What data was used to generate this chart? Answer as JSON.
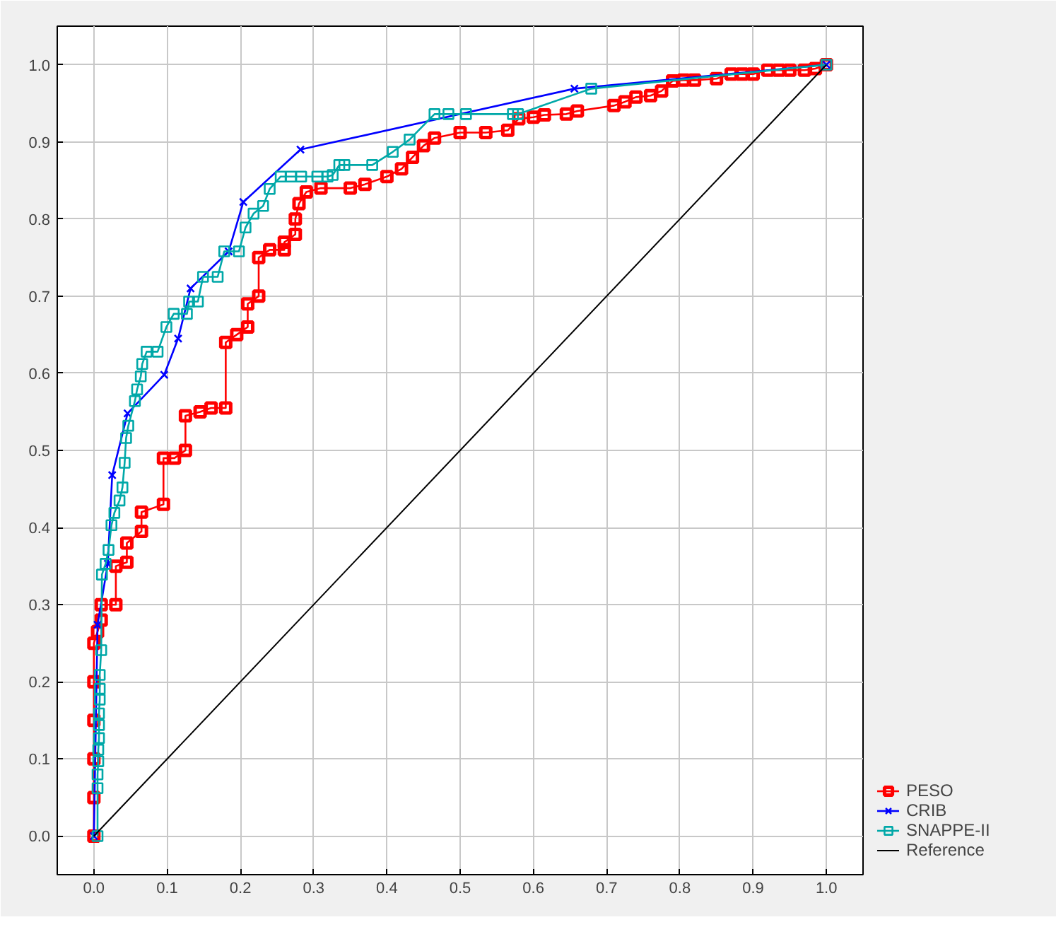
{
  "chart_data": {
    "type": "line",
    "xlim": [
      -0.05,
      1.05
    ],
    "ylim": [
      -0.05,
      1.05
    ],
    "xticks": [
      {
        "value": 0,
        "label": "0.0"
      },
      0.1,
      0.2,
      0.3,
      0.4,
      0.5,
      0.6,
      0.7,
      0.8,
      0.9,
      {
        "value": 1,
        "label": "1.0"
      }
    ],
    "yticks": [
      {
        "value": 0,
        "label": "0.0"
      },
      0.1,
      0.2,
      0.3,
      0.4,
      0.5,
      0.6,
      0.7,
      0.8,
      0.9,
      {
        "value": 1,
        "label": "1.0"
      }
    ],
    "grid": true,
    "legend": "right",
    "series": [
      {
        "name": "PESO",
        "color": "#ff0000",
        "marker": "square",
        "x": [
          0,
          0,
          0,
          0,
          0,
          0,
          0.005,
          0.01,
          0.01,
          0.03,
          0.03,
          0.045,
          0.045,
          0.065,
          0.065,
          0.095,
          0.095,
          0.11,
          0.125,
          0.125,
          0.145,
          0.16,
          0.18,
          0.18,
          0.195,
          0.21,
          0.21,
          0.225,
          0.225,
          0.24,
          0.26,
          0.26,
          0.275,
          0.275,
          0.28,
          0.29,
          0.31,
          0.35,
          0.37,
          0.4,
          0.42,
          0.435,
          0.45,
          0.465,
          0.5,
          0.535,
          0.565,
          0.58,
          0.6,
          0.615,
          0.645,
          0.66,
          0.71,
          0.725,
          0.74,
          0.76,
          0.775,
          0.79,
          0.805,
          0.82,
          0.85,
          0.87,
          0.885,
          0.9,
          0.92,
          0.935,
          0.95,
          0.97,
          0.985,
          1
        ],
        "values": [
          0,
          0.05,
          0.1,
          0.15,
          0.2,
          0.25,
          0.265,
          0.28,
          0.3,
          0.3,
          0.35,
          0.355,
          0.38,
          0.395,
          0.42,
          0.43,
          0.49,
          0.49,
          0.5,
          0.545,
          0.55,
          0.555,
          0.555,
          0.64,
          0.65,
          0.66,
          0.69,
          0.7,
          0.75,
          0.76,
          0.76,
          0.77,
          0.78,
          0.8,
          0.82,
          0.835,
          0.84,
          0.84,
          0.845,
          0.855,
          0.865,
          0.88,
          0.895,
          0.905,
          0.912,
          0.912,
          0.915,
          0.93,
          0.932,
          0.935,
          0.936,
          0.94,
          0.947,
          0.952,
          0.958,
          0.96,
          0.966,
          0.979,
          0.98,
          0.98,
          0.982,
          0.988,
          0.988,
          0.988,
          0.993,
          0.993,
          0.993,
          0.993,
          0.995,
          1
        ]
      },
      {
        "name": "CRIB",
        "color": "#0000ff",
        "marker": "cross",
        "x": [
          0,
          0.005,
          0.019,
          0.025,
          0.046,
          0.096,
          0.115,
          0.132,
          0.184,
          0.204,
          0.282,
          0.656,
          1
        ],
        "values": [
          0,
          0.274,
          0.353,
          0.468,
          0.548,
          0.598,
          0.645,
          0.71,
          0.758,
          0.822,
          0.89,
          0.969,
          1
        ]
      },
      {
        "name": "SNAPPE-II",
        "color": "#00a8a8",
        "marker": "square",
        "x": [
          0.005,
          0.005,
          0.005,
          0.006,
          0.006,
          0.007,
          0.007,
          0.007,
          0.008,
          0.008,
          0.008,
          0.01,
          0.011,
          0.016,
          0.02,
          0.024,
          0.028,
          0.035,
          0.039,
          0.042,
          0.044,
          0.047,
          0.056,
          0.059,
          0.064,
          0.066,
          0.072,
          0.087,
          0.099,
          0.109,
          0.127,
          0.13,
          0.142,
          0.149,
          0.169,
          0.178,
          0.198,
          0.207,
          0.218,
          0.231,
          0.24,
          0.255,
          0.269,
          0.283,
          0.305,
          0.319,
          0.326,
          0.335,
          0.342,
          0.38,
          0.408,
          0.431,
          0.465,
          0.484,
          0.508,
          0.572,
          0.579,
          0.679,
          1
        ],
        "values": [
          0,
          0.062,
          0.08,
          0.097,
          0.112,
          0.127,
          0.144,
          0.159,
          0.177,
          0.191,
          0.209,
          0.241,
          0.339,
          0.353,
          0.371,
          0.403,
          0.419,
          0.435,
          0.452,
          0.484,
          0.516,
          0.532,
          0.564,
          0.579,
          0.596,
          0.612,
          0.628,
          0.628,
          0.66,
          0.677,
          0.677,
          0.693,
          0.693,
          0.725,
          0.725,
          0.758,
          0.758,
          0.789,
          0.807,
          0.817,
          0.839,
          0.855,
          0.855,
          0.855,
          0.855,
          0.855,
          0.857,
          0.87,
          0.87,
          0.87,
          0.887,
          0.903,
          0.936,
          0.936,
          0.936,
          0.936,
          0.936,
          0.969,
          1
        ]
      },
      {
        "name": "Reference",
        "color": "#000000",
        "marker": "none",
        "x": [
          0,
          1
        ],
        "values": [
          0,
          1
        ]
      }
    ]
  }
}
